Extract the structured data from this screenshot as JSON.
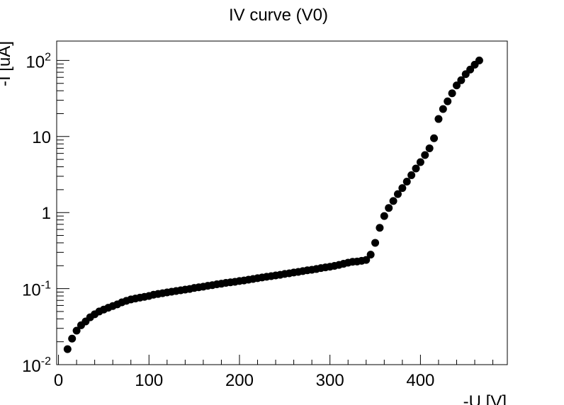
{
  "chart_data": {
    "type": "scatter",
    "title": "IV curve (V0)",
    "xlabel": "-U [V]",
    "ylabel": "-I [uA]",
    "xlim": [
      -2,
      496
    ],
    "ylim": [
      0.01,
      180
    ],
    "yscale": "log",
    "grid": false,
    "x_ticks": [
      "0",
      "100",
      "200",
      "300",
      "400"
    ],
    "y_ticks": [
      {
        "base": "10",
        "exp": "-2"
      },
      {
        "base": "10",
        "exp": "-1"
      },
      {
        "base": "1",
        "exp": ""
      },
      {
        "base": "10",
        "exp": ""
      },
      {
        "base": "10",
        "exp": "2"
      }
    ],
    "series": [
      {
        "marker_color": "#000000",
        "x": [
          10,
          15,
          20,
          25,
          30,
          35,
          40,
          45,
          50,
          55,
          60,
          65,
          70,
          75,
          80,
          85,
          90,
          95,
          100,
          105,
          110,
          115,
          120,
          125,
          130,
          135,
          140,
          145,
          150,
          155,
          160,
          165,
          170,
          175,
          180,
          185,
          190,
          195,
          200,
          205,
          210,
          215,
          220,
          225,
          230,
          235,
          240,
          245,
          250,
          255,
          260,
          265,
          270,
          275,
          280,
          285,
          290,
          295,
          300,
          305,
          310,
          315,
          320,
          325,
          330,
          335,
          340,
          345,
          350,
          355,
          360,
          365,
          370,
          375,
          380,
          385,
          390,
          395,
          400,
          405,
          410,
          415,
          420,
          425,
          430,
          435,
          440,
          445,
          450,
          455,
          460,
          465
        ],
        "y": [
          0.016,
          0.022,
          0.028,
          0.033,
          0.037,
          0.042,
          0.046,
          0.05,
          0.053,
          0.056,
          0.059,
          0.062,
          0.066,
          0.069,
          0.072,
          0.074,
          0.076,
          0.078,
          0.08,
          0.083,
          0.085,
          0.087,
          0.089,
          0.091,
          0.093,
          0.095,
          0.097,
          0.099,
          0.102,
          0.104,
          0.106,
          0.109,
          0.111,
          0.114,
          0.116,
          0.119,
          0.121,
          0.123,
          0.126,
          0.128,
          0.131,
          0.134,
          0.137,
          0.14,
          0.143,
          0.146,
          0.149,
          0.152,
          0.156,
          0.159,
          0.163,
          0.166,
          0.17,
          0.174,
          0.177,
          0.181,
          0.186,
          0.19,
          0.194,
          0.199,
          0.205,
          0.212,
          0.219,
          0.225,
          0.227,
          0.232,
          0.238,
          0.28,
          0.4,
          0.63,
          0.9,
          1.15,
          1.42,
          1.75,
          2.1,
          2.55,
          3.1,
          3.8,
          4.6,
          5.7,
          7.0,
          9.5,
          17,
          23,
          29,
          37,
          47,
          55,
          66,
          76,
          88,
          100
        ]
      }
    ]
  }
}
